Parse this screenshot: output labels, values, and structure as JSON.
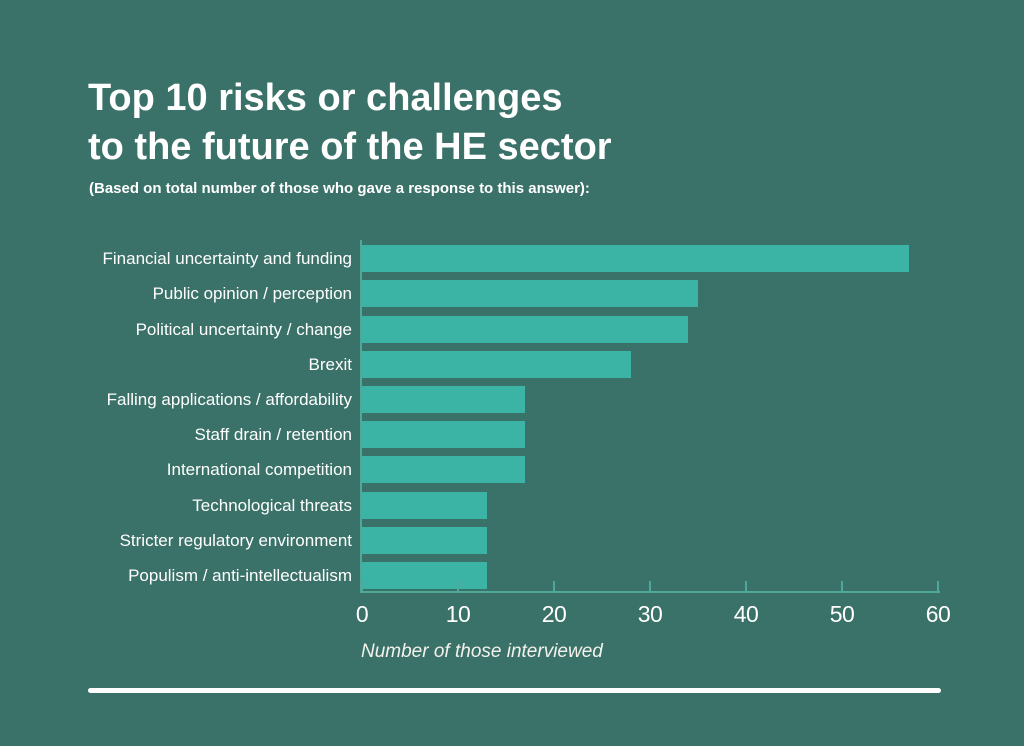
{
  "window": {
    "background": "#3A7168",
    "text_color": "#FFFFFF"
  },
  "header": {
    "title_line1": "Top 10 risks or challenges",
    "title_line2": "to the future of the HE sector",
    "subtitle": "(Based on total number of those who gave a response to this answer):"
  },
  "chart_data": {
    "type": "bar",
    "orientation": "horizontal",
    "title": "Top 10 risks or challenges to the future of the HE sector",
    "categories": [
      "Financial uncertainty and funding",
      "Public opinion / perception",
      "Political uncertainty / change",
      "Brexit",
      "Falling applications / affordability",
      "Staff drain / retention",
      "International competition",
      "Technological threats",
      "Stricter regulatory environment",
      "Populism / anti-intellectualism"
    ],
    "values": [
      57,
      35,
      34,
      28,
      17,
      17,
      17,
      13,
      13,
      13
    ],
    "xlabel": "Number of those interviewed",
    "xlim": [
      0,
      60
    ],
    "xticks": [
      0,
      10,
      20,
      30,
      40,
      50,
      60
    ],
    "grid": false,
    "legend": "none",
    "bar_color": "#3BB4A6",
    "axis_color": "#4FA89A"
  }
}
